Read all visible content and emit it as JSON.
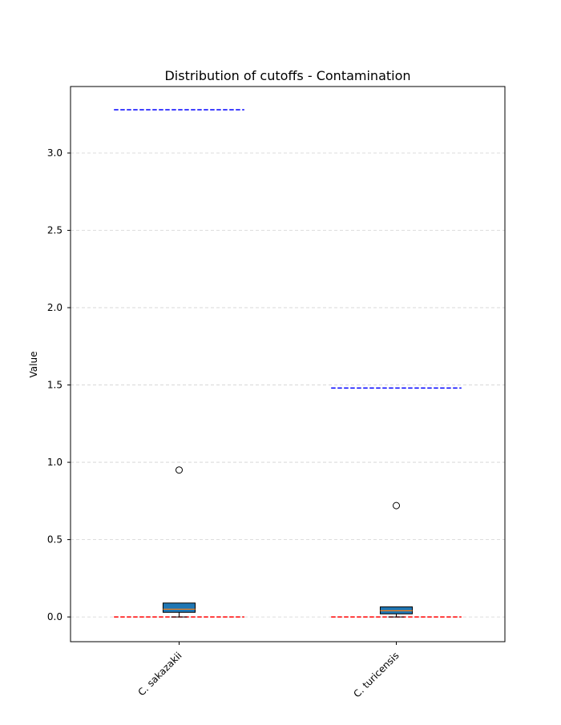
{
  "chart_data": {
    "type": "box",
    "title": "Distribution of cutoffs - Contamination",
    "xlabel": "",
    "ylabel": "Value",
    "ylim": [
      -0.16,
      3.43
    ],
    "yticks": [
      0.0,
      0.5,
      1.0,
      1.5,
      2.0,
      2.5,
      3.0
    ],
    "ytick_labels": [
      "0.0",
      "0.5",
      "1.0",
      "1.5",
      "2.0",
      "2.5",
      "3.0"
    ],
    "grid": "y-dashed",
    "categories": [
      "C. sakazakii",
      "C. turicensis"
    ],
    "boxes": [
      {
        "category": "C. sakazakii",
        "whisker_low": 0.0,
        "q1": 0.03,
        "median": 0.05,
        "q3": 0.09,
        "whisker_high": 0.09,
        "fliers": [
          0.95
        ],
        "upper_ref": 3.28,
        "lower_ref": 0.0
      },
      {
        "category": "C. turicensis",
        "whisker_low": 0.0,
        "q1": 0.02,
        "median": 0.04,
        "q3": 0.065,
        "whisker_high": 0.065,
        "fliers": [
          0.72
        ],
        "upper_ref": 1.48,
        "lower_ref": 0.0
      }
    ],
    "colors": {
      "box_fill": "#1f77b4",
      "median": "#ff7f0e",
      "upper_ref_line": "#0000ff",
      "lower_ref_line": "#ff0000",
      "grid": "#d3d3d3"
    }
  }
}
